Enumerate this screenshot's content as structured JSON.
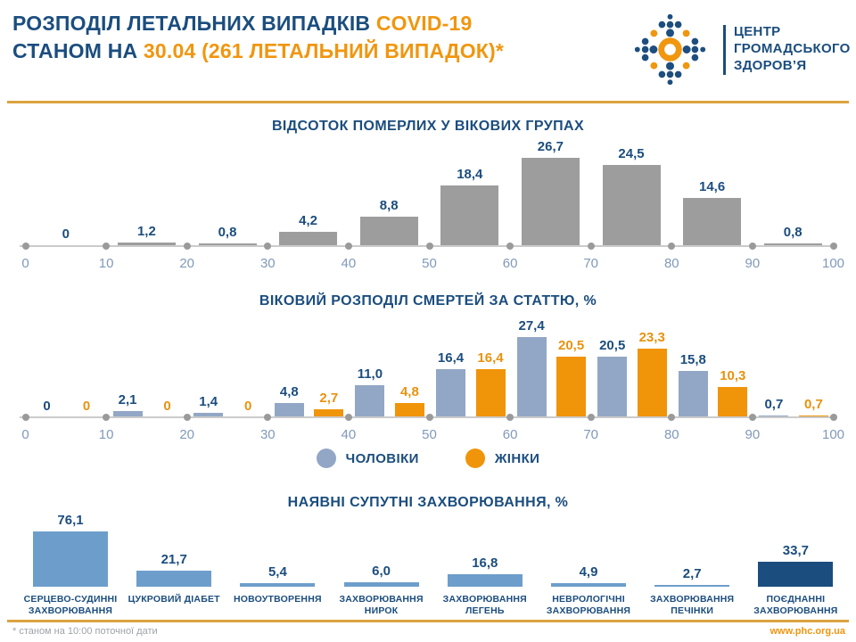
{
  "header": {
    "title_line1_dark": "РОЗПОДІЛ ЛЕТАЛЬНИХ ВИПАДКІВ ",
    "title_line1_accent": "COVID-19",
    "title_line2_dark": "СТАНОМ НА ",
    "title_line2_accent": "30.04 (261 ЛЕТАЛЬНИЙ ВИПАДОК)*",
    "logo_lines": [
      "ЦЕНТР",
      "ГРОМАДСЬКОГО",
      "ЗДОРОВ’Я"
    ]
  },
  "colors": {
    "navy": "#1b4d7e",
    "orange": "#f0960f",
    "amber_line": "#dca33e",
    "gray_bar": "#9d9d9d",
    "men_bar": "#92a7c5",
    "women_bar": "#f0940a",
    "comorbid_bar": "#6d9ecb",
    "combined_bar": "#1b4d7e",
    "axis_line": "#cbcbcb",
    "axis_dot": "#9a9a9a",
    "tick_label": "#8199b9",
    "footer_gray": "#9ea3a8",
    "zero_hairline": "#dde6ee"
  },
  "chart_data": [
    {
      "type": "bar",
      "title": "ВІДСОТОК ПОМЕРЛИХ У ВІКОВИХ ГРУПАХ",
      "xlabel": "",
      "ylabel": "",
      "x_ticks": [
        0,
        10,
        20,
        30,
        40,
        50,
        60,
        70,
        80,
        90,
        100
      ],
      "categories": [
        "0–10",
        "10–20",
        "20–30",
        "30–40",
        "40–50",
        "50–60",
        "60–70",
        "70–80",
        "80–90",
        "90–100"
      ],
      "values": [
        0,
        1.2,
        0.8,
        4.2,
        8.8,
        18.4,
        26.7,
        24.5,
        14.6,
        0.8
      ],
      "labels": [
        "0",
        "1,2",
        "0,8",
        "4,2",
        "8,8",
        "18,4",
        "26,7",
        "24,5",
        "14,6",
        "0,8"
      ],
      "ylim": [
        0,
        30
      ],
      "grid": false,
      "legend_position": "none"
    },
    {
      "type": "bar",
      "title": "ВІКОВИЙ РОЗПОДІЛ СМЕРТЕЙ ЗА СТАТТЮ, %",
      "xlabel": "",
      "ylabel": "",
      "x_ticks": [
        0,
        10,
        20,
        30,
        40,
        50,
        60,
        70,
        80,
        90,
        100
      ],
      "categories": [
        "0–10",
        "10–20",
        "20–30",
        "30–40",
        "40–50",
        "50–60",
        "60–70",
        "70–80",
        "80–90",
        "90–100"
      ],
      "series": [
        {
          "name": "ЧОЛОВІКИ",
          "color": "#92a7c5",
          "label_color": "#1b4d7e",
          "values": [
            0,
            2.1,
            1.4,
            4.8,
            11.0,
            16.4,
            27.4,
            20.5,
            15.8,
            0.7
          ],
          "labels": [
            "0",
            "2,1",
            "1,4",
            "4,8",
            "11,0",
            "16,4",
            "27,4",
            "20,5",
            "15,8",
            "0,7"
          ]
        },
        {
          "name": "ЖІНКИ",
          "color": "#f0940a",
          "label_color": "#e8920e",
          "values": [
            0,
            0,
            0,
            2.7,
            4.8,
            16.4,
            20.5,
            23.3,
            10.3,
            0.7
          ],
          "labels": [
            "0",
            "0",
            "0",
            "2,7",
            "4,8",
            "16,4",
            "20,5",
            "23,3",
            "10,3",
            "0,7"
          ]
        }
      ],
      "ylim": [
        0,
        30
      ],
      "grid": false,
      "legend_position": "bottom"
    },
    {
      "type": "bar",
      "title": "НАЯВНІ СУПУТНІ ЗАХВОРЮВАННЯ, %",
      "xlabel": "",
      "ylabel": "",
      "categories": [
        "СЕРЦЕВО-СУДИННІ\nЗАХВОРЮВАННЯ",
        "ЦУКРОВИЙ ДІАБЕТ",
        "НОВОУТВОРЕННЯ",
        "ЗАХВОРЮВАННЯ\nНИРОК",
        "ЗАХВОРЮВАННЯ\nЛЕГЕНЬ",
        "НЕВРОЛОГІЧНІ\nЗАХВОРЮВАННЯ",
        "ЗАХВОРЮВАННЯ\nПЕЧІНКИ",
        "ПОЄДНАННІ\nЗАХВОРЮВАННЯ"
      ],
      "values": [
        76.1,
        21.7,
        5.4,
        6.0,
        16.8,
        4.9,
        2.7,
        33.7
      ],
      "labels": [
        "76,1",
        "21,7",
        "5,4",
        "6,0",
        "16,8",
        "4,9",
        "2,7",
        "33,7"
      ],
      "bar_colors": [
        "#6d9ecb",
        "#6d9ecb",
        "#6d9ecb",
        "#6d9ecb",
        "#6d9ecb",
        "#6d9ecb",
        "#6d9ecb",
        "#1b4d7e"
      ],
      "ylim": [
        0,
        80
      ],
      "grid": false,
      "legend_position": "none"
    }
  ],
  "footer": {
    "note": "* станом на 10:00 поточної дати",
    "url": "www.phc.org.ua"
  }
}
